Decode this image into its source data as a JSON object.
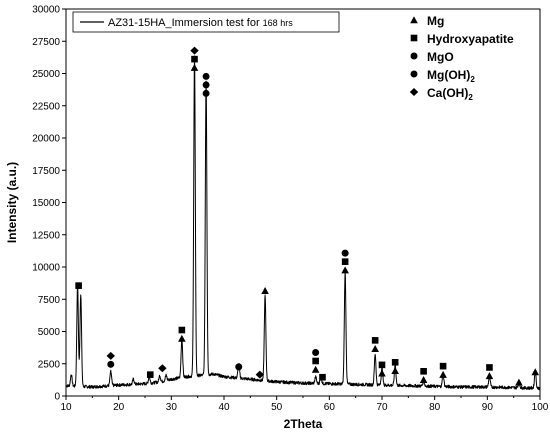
{
  "chart_data": {
    "type": "line",
    "xlabel": "2Theta",
    "ylabel": "Intensity (a.u.)",
    "xlim": [
      10,
      100
    ],
    "ylim": [
      0,
      30000
    ],
    "x_ticks": [
      10,
      20,
      30,
      40,
      50,
      60,
      70,
      80,
      90,
      100
    ],
    "y_ticks": [
      0,
      2500,
      5000,
      7500,
      10000,
      12500,
      15000,
      17500,
      20000,
      22500,
      25000,
      27500,
      30000
    ],
    "grid": false,
    "legend": {
      "placement": "top-left",
      "label_main": "AZ31-15HA_Immersion test for ",
      "label_small": "168 hrs"
    },
    "series": [
      {
        "name": "AZ31-15HA_Immersion test for 168 hrs",
        "color": "#000000",
        "baseline": [
          [
            10,
            800
          ],
          [
            15,
            700
          ],
          [
            20,
            850
          ],
          [
            25,
            950
          ],
          [
            28,
            1100
          ],
          [
            30,
            1300
          ],
          [
            33,
            1500
          ],
          [
            38,
            1700
          ],
          [
            40,
            1500
          ],
          [
            45,
            1300
          ],
          [
            50,
            1100
          ],
          [
            55,
            1000
          ],
          [
            60,
            950
          ],
          [
            65,
            900
          ],
          [
            70,
            850
          ],
          [
            75,
            800
          ],
          [
            80,
            750
          ],
          [
            85,
            700
          ],
          [
            90,
            700
          ],
          [
            95,
            650
          ],
          [
            100,
            600
          ]
        ],
        "peaks": [
          [
            11.0,
            900
          ],
          [
            12.2,
            7800
          ],
          [
            12.8,
            7200
          ],
          [
            18.5,
            1100
          ],
          [
            22.8,
            400
          ],
          [
            25.8,
            500
          ],
          [
            27.8,
            500
          ],
          [
            29.0,
            400
          ],
          [
            32.0,
            3000
          ],
          [
            34.4,
            24800
          ],
          [
            36.6,
            22800
          ],
          [
            42.8,
            1100
          ],
          [
            47.8,
            6600
          ],
          [
            57.4,
            500
          ],
          [
            58.4,
            500
          ],
          [
            63.0,
            8700
          ],
          [
            68.7,
            2400
          ],
          [
            70.0,
            1300
          ],
          [
            72.5,
            1600
          ],
          [
            77.9,
            400
          ],
          [
            81.6,
            900
          ],
          [
            90.4,
            800
          ],
          [
            96.0,
            400
          ],
          [
            99.1,
            1300
          ]
        ]
      }
    ],
    "phase_key": {
      "placement": "top-right",
      "entries": [
        {
          "marker": "triangle",
          "label_main": "Mg",
          "label_sub": ""
        },
        {
          "marker": "square",
          "label_main": "Hydroxyapatite",
          "label_sub": ""
        },
        {
          "marker": "circle",
          "label_main": "MgO",
          "label_sub": ""
        },
        {
          "marker": "circle",
          "label_main": "Mg(OH)",
          "label_sub": "2"
        },
        {
          "marker": "diamond",
          "label_main": "Ca(OH)",
          "label_sub": "2"
        }
      ]
    },
    "peak_markers": [
      {
        "x": 12.4,
        "y": 8400,
        "symbols": [
          "square"
        ]
      },
      {
        "x": 18.5,
        "y": 2300,
        "symbols": [
          "circle",
          "diamond"
        ]
      },
      {
        "x": 26.0,
        "y": 1500,
        "symbols": [
          "square"
        ]
      },
      {
        "x": 28.3,
        "y": 2000,
        "symbols": [
          "diamond"
        ]
      },
      {
        "x": 32.0,
        "y": 4300,
        "symbols": [
          "triangle",
          "square"
        ]
      },
      {
        "x": 34.4,
        "y": 25300,
        "symbols": [
          "triangle",
          "square",
          "diamond"
        ]
      },
      {
        "x": 36.6,
        "y": 23300,
        "symbols": [
          "circle",
          "circle",
          "circle"
        ]
      },
      {
        "x": 42.8,
        "y": 2100,
        "symbols": [
          "circle"
        ]
      },
      {
        "x": 46.8,
        "y": 1500,
        "symbols": [
          "diamond"
        ]
      },
      {
        "x": 47.8,
        "y": 8000,
        "symbols": [
          "triangle"
        ]
      },
      {
        "x": 57.4,
        "y": 1900,
        "symbols": [
          "triangle",
          "square",
          "circle"
        ]
      },
      {
        "x": 58.7,
        "y": 1300,
        "symbols": [
          "square"
        ]
      },
      {
        "x": 63.0,
        "y": 9600,
        "symbols": [
          "triangle",
          "square",
          "circle"
        ]
      },
      {
        "x": 68.7,
        "y": 3500,
        "symbols": [
          "triangle",
          "square"
        ]
      },
      {
        "x": 70.0,
        "y": 1600,
        "symbols": [
          "triangle",
          "square"
        ]
      },
      {
        "x": 72.5,
        "y": 1800,
        "symbols": [
          "triangle",
          "square"
        ]
      },
      {
        "x": 77.9,
        "y": 1100,
        "symbols": [
          "triangle",
          "square"
        ]
      },
      {
        "x": 81.6,
        "y": 1500,
        "symbols": [
          "triangle",
          "square"
        ]
      },
      {
        "x": 90.4,
        "y": 1400,
        "symbols": [
          "triangle",
          "square"
        ]
      },
      {
        "x": 96.0,
        "y": 900,
        "symbols": [
          "triangle"
        ]
      },
      {
        "x": 99.1,
        "y": 1700,
        "symbols": [
          "triangle"
        ]
      }
    ]
  }
}
